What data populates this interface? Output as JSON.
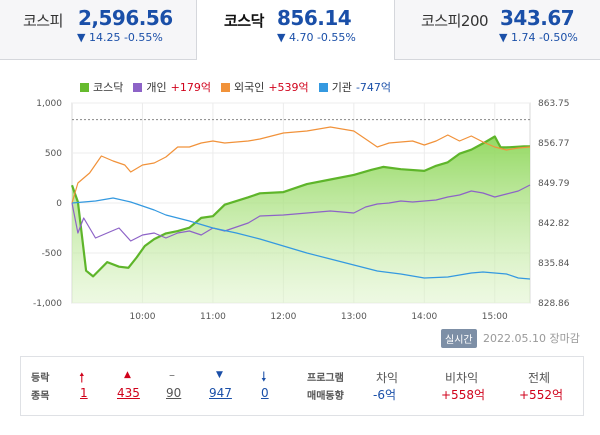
{
  "tabs": [
    {
      "name": "코스피",
      "value": "2,596.56",
      "change": "▼ 14.25 -0.55%"
    },
    {
      "name": "코스닥",
      "value": "856.14",
      "change": "▼ 4.70 -0.55%"
    },
    {
      "name": "코스피200",
      "value": "343.67",
      "change": "▼ 1.74 -0.50%"
    }
  ],
  "legend": {
    "kosdaq": "코스닥",
    "individual": "개인",
    "individual_val": "+179억",
    "foreign": "외국인",
    "foreign_val": "+539억",
    "institution": "기관",
    "institution_val": "-747억"
  },
  "realtime_badge": "실시간",
  "date_text": "2022.05.10  장마감",
  "bottom": {
    "rise_label_1": "등락",
    "rise_label_2": "종목",
    "upper_limit": "1",
    "rise": "435",
    "flat": "90",
    "fall": "947",
    "lower_limit": "0",
    "program_label_1": "프로그램",
    "program_label_2": "매매동향",
    "arb_label": "차익",
    "arb_val": "-6억",
    "nonarb_label": "비차익",
    "nonarb_val": "+558억",
    "total_label": "전체",
    "total_val": "+552억"
  },
  "colors": {
    "kosdaq": "#66bb2e",
    "individual": "#8d63c7",
    "foreign": "#f1923a",
    "institution": "#3499e0",
    "up": "#d0021b",
    "down": "#1a4fa8"
  },
  "chart_data": {
    "type": "line",
    "x_ticks": [
      "10:00",
      "11:00",
      "12:00",
      "13:00",
      "14:00",
      "15:00"
    ],
    "y_left": {
      "label": "",
      "ticks": [
        "1,000",
        "500",
        "0",
        "-500",
        "-1,000"
      ],
      "range": [
        -1000,
        1000
      ]
    },
    "y_right": {
      "label": "",
      "ticks": [
        "863.75",
        "856.77",
        "849.79",
        "842.82",
        "835.84",
        "828.86"
      ],
      "range": [
        828.86,
        863.75
      ]
    },
    "x_range": [
      "09:00",
      "15:30"
    ],
    "series": [
      {
        "name": "코스닥",
        "axis": "right",
        "values": [
          [
            0,
            849.4
          ],
          [
            5,
            846.5
          ],
          [
            12,
            834.5
          ],
          [
            18,
            833.5
          ],
          [
            30,
            836.0
          ],
          [
            40,
            835.2
          ],
          [
            48,
            835.0
          ],
          [
            55,
            836.8
          ],
          [
            62,
            838.8
          ],
          [
            70,
            840.0
          ],
          [
            80,
            841.0
          ],
          [
            90,
            841.4
          ],
          [
            100,
            842.0
          ],
          [
            110,
            843.7
          ],
          [
            120,
            844.0
          ],
          [
            130,
            846.0
          ],
          [
            150,
            847.3
          ],
          [
            160,
            848.0
          ],
          [
            180,
            848.2
          ],
          [
            200,
            849.6
          ],
          [
            220,
            850.4
          ],
          [
            240,
            851.2
          ],
          [
            255,
            852.1
          ],
          [
            265,
            852.6
          ],
          [
            280,
            852.2
          ],
          [
            300,
            851.9
          ],
          [
            310,
            852.8
          ],
          [
            320,
            853.4
          ],
          [
            330,
            854.9
          ],
          [
            340,
            855.6
          ],
          [
            350,
            856.7
          ],
          [
            360,
            857.9
          ],
          [
            365,
            856.0
          ],
          [
            370,
            856.0
          ],
          [
            385,
            856.2
          ],
          [
            390,
            856.2
          ]
        ]
      },
      {
        "name": "개인",
        "axis": "left",
        "values": [
          [
            0,
            0
          ],
          [
            5,
            -300
          ],
          [
            10,
            -150
          ],
          [
            20,
            -350
          ],
          [
            30,
            -300
          ],
          [
            40,
            -250
          ],
          [
            50,
            -380
          ],
          [
            60,
            -320
          ],
          [
            70,
            -300
          ],
          [
            80,
            -350
          ],
          [
            90,
            -300
          ],
          [
            100,
            -280
          ],
          [
            110,
            -320
          ],
          [
            120,
            -250
          ],
          [
            130,
            -280
          ],
          [
            150,
            -200
          ],
          [
            160,
            -130
          ],
          [
            180,
            -120
          ],
          [
            200,
            -100
          ],
          [
            220,
            -80
          ],
          [
            240,
            -100
          ],
          [
            250,
            -40
          ],
          [
            260,
            -10
          ],
          [
            270,
            0
          ],
          [
            280,
            20
          ],
          [
            290,
            10
          ],
          [
            300,
            20
          ],
          [
            310,
            30
          ],
          [
            320,
            60
          ],
          [
            330,
            80
          ],
          [
            340,
            120
          ],
          [
            350,
            100
          ],
          [
            360,
            60
          ],
          [
            370,
            90
          ],
          [
            380,
            120
          ],
          [
            390,
            180
          ]
        ]
      },
      {
        "name": "외국인",
        "axis": "left",
        "values": [
          [
            0,
            0
          ],
          [
            5,
            200
          ],
          [
            15,
            300
          ],
          [
            25,
            470
          ],
          [
            35,
            420
          ],
          [
            45,
            380
          ],
          [
            50,
            310
          ],
          [
            60,
            380
          ],
          [
            70,
            400
          ],
          [
            80,
            460
          ],
          [
            90,
            560
          ],
          [
            100,
            560
          ],
          [
            110,
            600
          ],
          [
            120,
            620
          ],
          [
            130,
            600
          ],
          [
            150,
            620
          ],
          [
            160,
            640
          ],
          [
            180,
            700
          ],
          [
            200,
            720
          ],
          [
            220,
            760
          ],
          [
            240,
            720
          ],
          [
            250,
            640
          ],
          [
            260,
            560
          ],
          [
            270,
            600
          ],
          [
            280,
            610
          ],
          [
            290,
            620
          ],
          [
            300,
            580
          ],
          [
            310,
            620
          ],
          [
            320,
            680
          ],
          [
            330,
            620
          ],
          [
            340,
            670
          ],
          [
            350,
            610
          ],
          [
            360,
            560
          ],
          [
            370,
            530
          ],
          [
            380,
            550
          ],
          [
            390,
            560
          ]
        ]
      },
      {
        "name": "기관",
        "axis": "left",
        "values": [
          [
            0,
            0
          ],
          [
            20,
            20
          ],
          [
            35,
            50
          ],
          [
            50,
            10
          ],
          [
            60,
            -30
          ],
          [
            70,
            -70
          ],
          [
            80,
            -120
          ],
          [
            100,
            -180
          ],
          [
            120,
            -250
          ],
          [
            140,
            -300
          ],
          [
            160,
            -360
          ],
          [
            180,
            -430
          ],
          [
            200,
            -500
          ],
          [
            220,
            -560
          ],
          [
            240,
            -620
          ],
          [
            260,
            -680
          ],
          [
            280,
            -710
          ],
          [
            300,
            -750
          ],
          [
            320,
            -740
          ],
          [
            340,
            -700
          ],
          [
            350,
            -690
          ],
          [
            360,
            -700
          ],
          [
            370,
            -710
          ],
          [
            380,
            -750
          ],
          [
            390,
            -760
          ]
        ]
      }
    ]
  }
}
